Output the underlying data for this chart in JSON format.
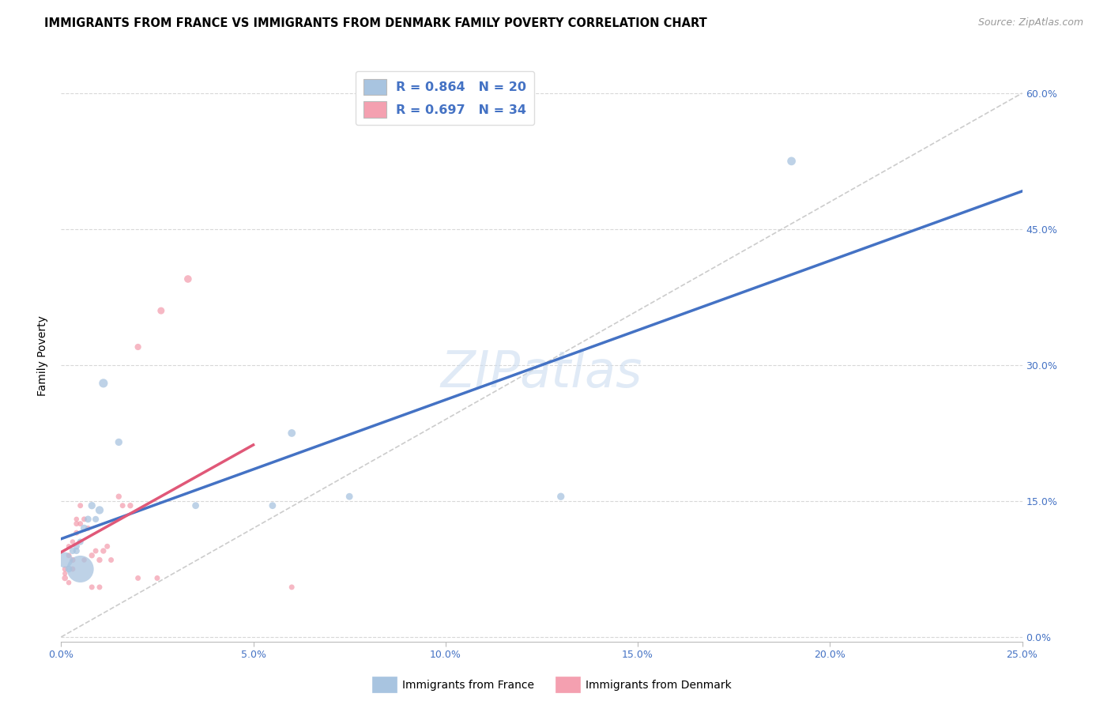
{
  "title": "IMMIGRANTS FROM FRANCE VS IMMIGRANTS FROM DENMARK FAMILY POVERTY CORRELATION CHART",
  "source": "Source: ZipAtlas.com",
  "ylabel": "Family Poverty",
  "legend_france_r": "R = 0.864",
  "legend_france_n": "N = 20",
  "legend_denmark_r": "R = 0.697",
  "legend_denmark_n": "N = 34",
  "watermark": "ZIPatlas",
  "france_color": "#a8c4e0",
  "france_line_color": "#4472c4",
  "denmark_color": "#f4a0b0",
  "denmark_line_color": "#e05878",
  "france_points": [
    [
      0.001,
      0.085,
      200
    ],
    [
      0.002,
      0.075,
      40
    ],
    [
      0.003,
      0.095,
      35
    ],
    [
      0.004,
      0.1,
      35
    ],
    [
      0.004,
      0.095,
      35
    ],
    [
      0.005,
      0.105,
      35
    ],
    [
      0.005,
      0.075,
      600
    ],
    [
      0.006,
      0.12,
      45
    ],
    [
      0.007,
      0.13,
      40
    ],
    [
      0.008,
      0.145,
      45
    ],
    [
      0.009,
      0.13,
      35
    ],
    [
      0.01,
      0.14,
      55
    ],
    [
      0.011,
      0.28,
      65
    ],
    [
      0.015,
      0.215,
      45
    ],
    [
      0.035,
      0.145,
      40
    ],
    [
      0.055,
      0.145,
      40
    ],
    [
      0.06,
      0.225,
      50
    ],
    [
      0.075,
      0.155,
      40
    ],
    [
      0.13,
      0.155,
      45
    ],
    [
      0.19,
      0.525,
      60
    ]
  ],
  "denmark_points": [
    [
      0.001,
      0.065,
      30
    ],
    [
      0.001,
      0.075,
      25
    ],
    [
      0.001,
      0.07,
      20
    ],
    [
      0.002,
      0.06,
      22
    ],
    [
      0.002,
      0.09,
      25
    ],
    [
      0.002,
      0.1,
      22
    ],
    [
      0.003,
      0.075,
      25
    ],
    [
      0.003,
      0.105,
      22
    ],
    [
      0.003,
      0.085,
      28
    ],
    [
      0.004,
      0.115,
      25
    ],
    [
      0.004,
      0.125,
      25
    ],
    [
      0.004,
      0.13,
      22
    ],
    [
      0.005,
      0.125,
      25
    ],
    [
      0.005,
      0.145,
      25
    ],
    [
      0.006,
      0.13,
      25
    ],
    [
      0.006,
      0.085,
      22
    ],
    [
      0.007,
      0.12,
      25
    ],
    [
      0.008,
      0.055,
      25
    ],
    [
      0.008,
      0.09,
      28
    ],
    [
      0.009,
      0.095,
      25
    ],
    [
      0.01,
      0.085,
      28
    ],
    [
      0.01,
      0.055,
      25
    ],
    [
      0.011,
      0.095,
      28
    ],
    [
      0.012,
      0.1,
      25
    ],
    [
      0.013,
      0.085,
      25
    ],
    [
      0.015,
      0.155,
      28
    ],
    [
      0.016,
      0.145,
      25
    ],
    [
      0.018,
      0.145,
      28
    ],
    [
      0.02,
      0.065,
      25
    ],
    [
      0.025,
      0.065,
      25
    ],
    [
      0.026,
      0.36,
      42
    ],
    [
      0.033,
      0.395,
      48
    ],
    [
      0.06,
      0.055,
      25
    ],
    [
      0.02,
      0.32,
      35
    ]
  ],
  "xlim": [
    0.0,
    0.25
  ],
  "ylim": [
    -0.005,
    0.625
  ],
  "yticks": [
    0.0,
    0.15,
    0.3,
    0.45,
    0.6
  ],
  "xticks": [
    0.0,
    0.05,
    0.1,
    0.15,
    0.2,
    0.25
  ],
  "grid_color": "#d8d8d8",
  "background_color": "#ffffff",
  "title_fontsize": 11,
  "axis_label_color": "#4472c4",
  "france_trend": [
    -0.02,
    2.28
  ],
  "denmark_trend": [
    -0.02,
    10.5
  ]
}
